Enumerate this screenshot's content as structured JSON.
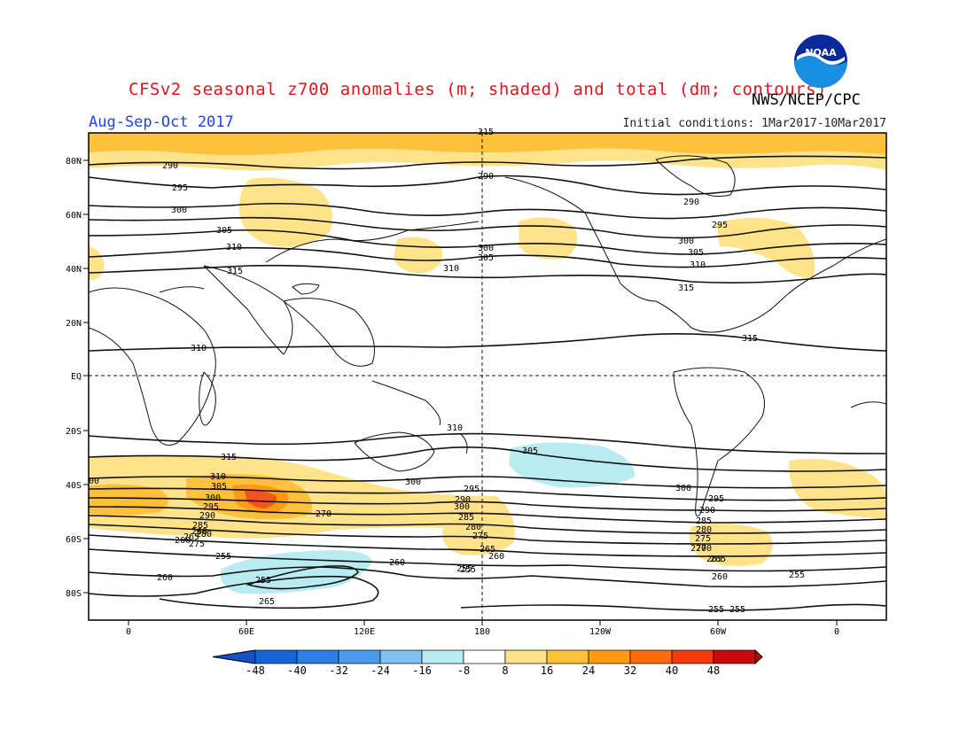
{
  "title": "CFSv2 seasonal z700 anomalies (m; shaded) and total (dm; contours)",
  "season": "Aug-Sep-Oct 2017",
  "initial_conditions": "Initial conditions: 1Mar2017-10Mar2017",
  "agency": "NWS/NCEP/CPC",
  "logo_text": "NOAA",
  "lat_labels": [
    "80N",
    "60N",
    "40N",
    "20N",
    "EQ",
    "20S",
    "40S",
    "60S",
    "80S"
  ],
  "lon_labels": [
    "0",
    "60E",
    "120E",
    "180",
    "120W",
    "60W",
    "0"
  ],
  "colorbar": {
    "labels": [
      "-48",
      "-40",
      "-32",
      "-24",
      "-16",
      "-8",
      "8",
      "16",
      "24",
      "32",
      "40",
      "48"
    ],
    "colors": [
      "#1565d8",
      "#2d7fe6",
      "#4a9af0",
      "#82c0f2",
      "#b9ecf2",
      "#ffffff",
      "#ffe38a",
      "#ffc03c",
      "#ff9a14",
      "#ff6a0a",
      "#f23a0a",
      "#c80a0a"
    ],
    "arrow_left": "#1650c8",
    "arrow_right": "#b40a0a"
  },
  "contour_labels": [
    {
      "text": "290"
    },
    {
      "text": "295"
    },
    {
      "text": "300"
    },
    {
      "text": "305"
    },
    {
      "text": "310"
    },
    {
      "text": "315"
    },
    {
      "text": "290"
    },
    {
      "text": "300"
    },
    {
      "text": "305"
    },
    {
      "text": "310"
    },
    {
      "text": "315"
    },
    {
      "text": "290"
    },
    {
      "text": "295"
    },
    {
      "text": "300"
    },
    {
      "text": "305"
    },
    {
      "text": "310"
    },
    {
      "text": "315"
    },
    {
      "text": "315"
    },
    {
      "text": "310"
    },
    {
      "text": "310"
    },
    {
      "text": "315"
    },
    {
      "text": "310"
    },
    {
      "text": "305"
    },
    {
      "text": "305"
    },
    {
      "text": "300"
    },
    {
      "text": "300"
    },
    {
      "text": "295"
    },
    {
      "text": "290"
    },
    {
      "text": "285"
    },
    {
      "text": "280"
    },
    {
      "text": "275"
    },
    {
      "text": "270"
    },
    {
      "text": "265"
    },
    {
      "text": "260"
    },
    {
      "text": "255"
    },
    {
      "text": "260"
    },
    {
      "text": "255"
    },
    {
      "text": "265"
    },
    {
      "text": "260"
    },
    {
      "text": "255"
    },
    {
      "text": "300"
    },
    {
      "text": "295"
    },
    {
      "text": "290"
    },
    {
      "text": "285"
    },
    {
      "text": "280"
    },
    {
      "text": "275"
    },
    {
      "text": "265"
    },
    {
      "text": "260"
    },
    {
      "text": "255"
    },
    {
      "text": "300"
    },
    {
      "text": "295"
    },
    {
      "text": "290"
    },
    {
      "text": "285"
    },
    {
      "text": "280"
    },
    {
      "text": "275"
    },
    {
      "text": "270"
    },
    {
      "text": "265"
    },
    {
      "text": "260"
    },
    {
      "text": "255"
    },
    {
      "text": "255"
    },
    {
      "text": "270"
    },
    {
      "text": "265"
    },
    {
      "text": "260"
    },
    {
      "text": "255"
    },
    {
      "text": "00"
    }
  ]
}
